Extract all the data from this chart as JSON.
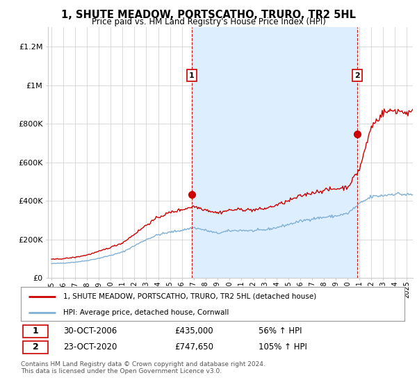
{
  "title": "1, SHUTE MEADOW, PORTSCATHO, TRURO, TR2 5HL",
  "subtitle": "Price paid vs. HM Land Registry's House Price Index (HPI)",
  "ylabel_ticks": [
    "£0",
    "£200K",
    "£400K",
    "£600K",
    "£800K",
    "£1M",
    "£1.2M"
  ],
  "ytick_values": [
    0,
    200000,
    400000,
    600000,
    800000,
    1000000,
    1200000
  ],
  "ylim": [
    0,
    1300000
  ],
  "xlim_start": 1994.7,
  "xlim_end": 2025.5,
  "legend_label_red": "1, SHUTE MEADOW, PORTSCATHO, TRURO, TR2 5HL (detached house)",
  "legend_label_blue": "HPI: Average price, detached house, Cornwall",
  "sale1_x": 2006.83,
  "sale1_y": 435000,
  "sale1_label": "1",
  "sale2_x": 2020.81,
  "sale2_y": 747650,
  "sale2_label": "2",
  "footer": "Contains HM Land Registry data © Crown copyright and database right 2024.\nThis data is licensed under the Open Government Licence v3.0.",
  "red_color": "#cc0000",
  "blue_color": "#7fb0d4",
  "shade_color": "#ddeeff",
  "vline_color": "#cc0000",
  "bg_color": "#ffffff",
  "grid_color": "#cccccc"
}
